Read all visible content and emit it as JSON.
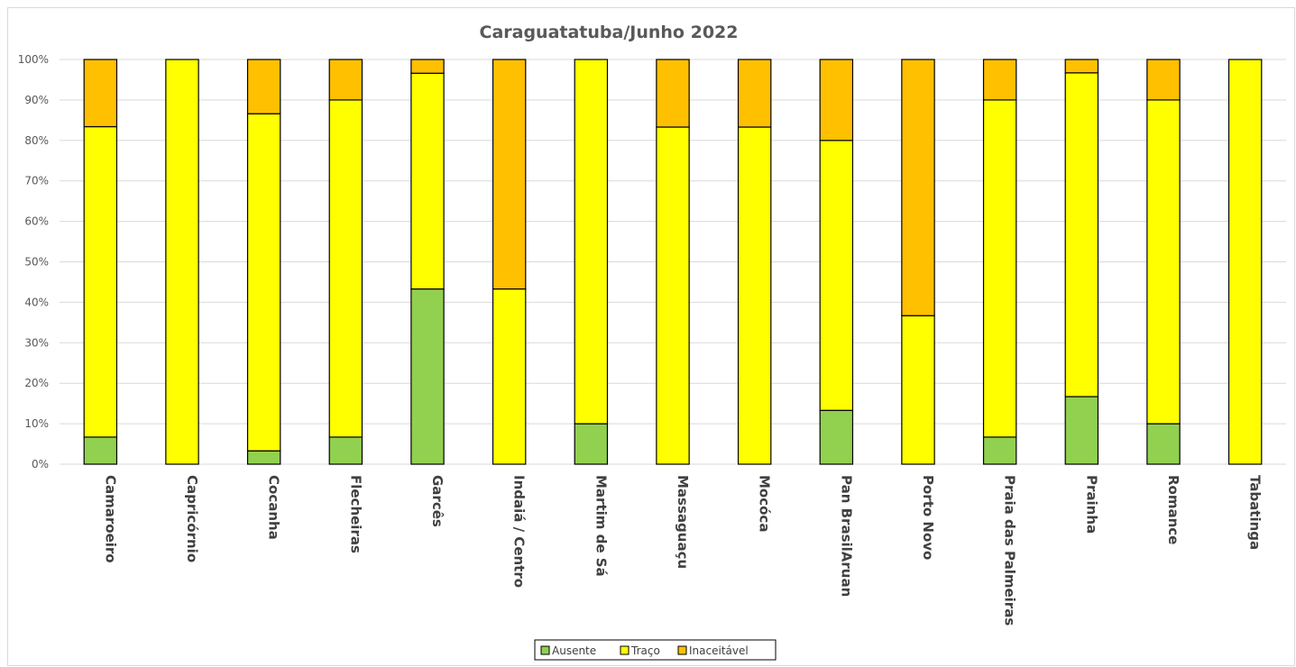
{
  "chart_data": {
    "type": "bar",
    "stacked": true,
    "percent_stacked": true,
    "title": "Caraguatatuba/Junho 2022",
    "xlabel": "",
    "ylabel": "",
    "ylim": [
      0,
      100
    ],
    "yticks": [
      "0%",
      "10%",
      "20%",
      "30%",
      "40%",
      "50%",
      "60%",
      "70%",
      "80%",
      "90%",
      "100%"
    ],
    "grid": true,
    "legend_position": "bottom",
    "categories": [
      "Camaroeiro",
      "Capricórnio",
      "Cocanha",
      "Flecheiras",
      "Garcês",
      "Indaiá / Centro",
      "Martim de Sá",
      "Massaguaçu",
      "Mocóca",
      "Pan BrasilAruan",
      "Porto Novo",
      "Praia das Palmeiras",
      "Prainha",
      "Romance",
      "Tabatinga"
    ],
    "series": [
      {
        "name": "Ausente",
        "color": "#92d050",
        "values": [
          6.7,
          0,
          3.3,
          6.7,
          43.3,
          0,
          10,
          0,
          0,
          13.3,
          0,
          6.7,
          16.7,
          10,
          0
        ]
      },
      {
        "name": "Traço",
        "color": "#ffff00",
        "values": [
          76.7,
          100,
          83.3,
          83.3,
          53.3,
          43.3,
          90,
          83.3,
          83.3,
          66.7,
          36.7,
          83.3,
          80,
          80,
          100
        ]
      },
      {
        "name": "Inaceitável",
        "color": "#ffc000",
        "values": [
          16.6,
          0,
          13.4,
          10,
          3.4,
          56.7,
          0,
          16.7,
          16.7,
          20,
          63.3,
          10,
          3.3,
          10,
          0
        ]
      }
    ]
  }
}
